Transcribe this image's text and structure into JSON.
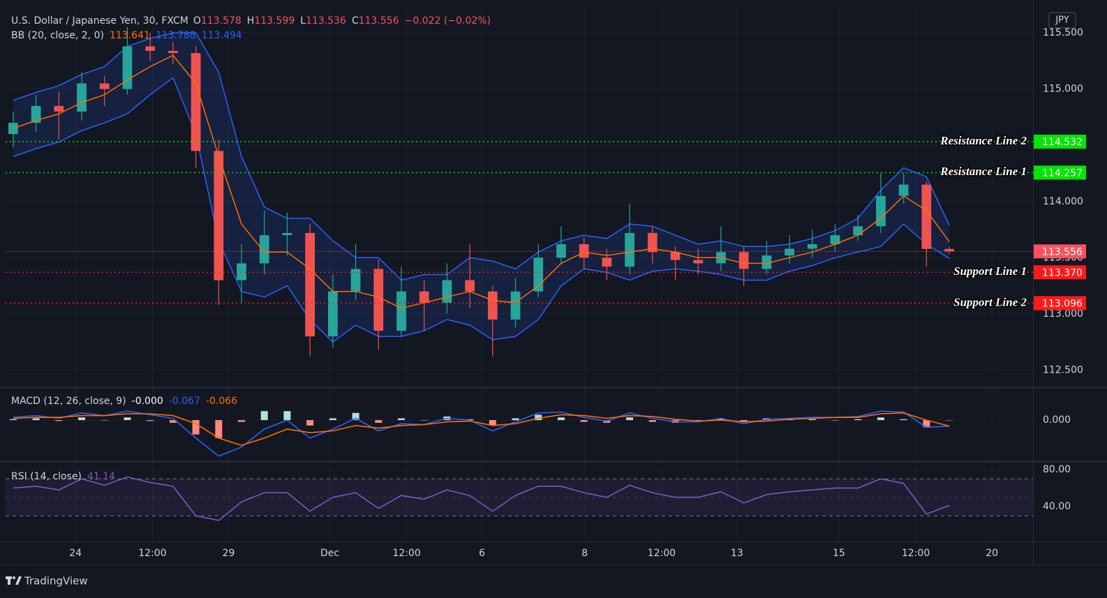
{
  "chart_data": [
    {
      "type": "candlestick",
      "title": "U.S. Dollar / Japanese Yen, 30, FXCM",
      "ohlc_keys": [
        "O",
        "H",
        "L",
        "C"
      ],
      "change": "−0.022 (−0.02%)",
      "currency": "JPY",
      "up_color": "#26a69a",
      "down_color": "#ef5350",
      "last_color": "#f7525f",
      "x": [
        0,
        3,
        6,
        9,
        12,
        15,
        18,
        21,
        24,
        27,
        30,
        33,
        36,
        39,
        42,
        45,
        48,
        51,
        54,
        57,
        60,
        63,
        66,
        69,
        72,
        75,
        78,
        81,
        84,
        87,
        90,
        93,
        96,
        99,
        102,
        105,
        108,
        111,
        114,
        117,
        120,
        123
      ],
      "open": [
        114.6,
        114.7,
        114.85,
        114.8,
        115.05,
        115.0,
        115.38,
        115.34,
        115.32,
        114.45,
        113.3,
        113.45,
        113.7,
        113.72,
        112.8,
        113.2,
        113.4,
        112.85,
        113.2,
        113.1,
        113.3,
        113.2,
        112.95,
        113.2,
        113.5,
        113.62,
        113.5,
        113.42,
        113.72,
        113.55,
        113.48,
        113.45,
        113.55,
        113.4,
        113.52,
        113.58,
        113.62,
        113.7,
        113.78,
        114.05,
        114.15,
        113.578
      ],
      "high": [
        114.8,
        114.95,
        114.98,
        115.15,
        115.12,
        115.55,
        115.5,
        115.42,
        115.38,
        114.55,
        113.62,
        113.92,
        113.9,
        113.8,
        113.35,
        113.62,
        113.48,
        113.42,
        113.3,
        113.45,
        113.62,
        113.25,
        113.32,
        113.62,
        113.78,
        113.68,
        113.58,
        113.98,
        113.78,
        113.6,
        113.58,
        113.78,
        113.6,
        113.65,
        113.7,
        113.75,
        113.8,
        113.88,
        114.25,
        114.25,
        114.18,
        113.599
      ],
      "low": [
        114.48,
        114.62,
        114.55,
        114.72,
        114.85,
        114.95,
        115.25,
        115.22,
        114.3,
        113.08,
        113.1,
        113.35,
        113.52,
        112.62,
        112.7,
        113.12,
        112.68,
        112.8,
        112.85,
        113.0,
        113.05,
        112.62,
        112.88,
        113.15,
        113.45,
        113.4,
        113.3,
        113.35,
        113.45,
        113.3,
        113.35,
        113.38,
        113.25,
        113.35,
        113.45,
        113.5,
        113.55,
        113.65,
        113.72,
        113.98,
        113.42,
        113.536
      ],
      "close": [
        114.7,
        114.85,
        114.8,
        115.05,
        115.0,
        115.38,
        115.34,
        115.32,
        114.45,
        113.3,
        113.45,
        113.7,
        113.72,
        112.8,
        113.2,
        113.4,
        112.85,
        113.2,
        113.1,
        113.3,
        113.2,
        112.95,
        113.2,
        113.5,
        113.62,
        113.5,
        113.42,
        113.72,
        113.55,
        113.48,
        113.45,
        113.55,
        113.4,
        113.52,
        113.58,
        113.62,
        113.7,
        113.78,
        114.05,
        114.15,
        113.578,
        113.556
      ],
      "bollinger": {
        "title": "BB (20, close, 2, 0)",
        "fill": "rgba(41,98,255,0.13)",
        "basis": {
          "color": "#ff6d00",
          "values": [
            114.65,
            114.72,
            114.78,
            114.88,
            114.95,
            115.08,
            115.2,
            115.3,
            115.05,
            114.4,
            113.8,
            113.55,
            113.55,
            113.4,
            113.2,
            113.2,
            113.15,
            113.05,
            113.1,
            113.15,
            113.2,
            113.12,
            113.1,
            113.25,
            113.45,
            113.55,
            113.52,
            113.55,
            113.58,
            113.55,
            113.5,
            113.5,
            113.45,
            113.45,
            113.5,
            113.55,
            113.62,
            113.7,
            113.85,
            114.05,
            113.92,
            113.641
          ]
        },
        "upper": {
          "color": "#2962ff",
          "values": [
            114.9,
            114.97,
            115.03,
            115.13,
            115.2,
            115.38,
            115.45,
            115.5,
            115.5,
            115.15,
            114.4,
            113.95,
            113.85,
            113.85,
            113.65,
            113.5,
            113.5,
            113.3,
            113.35,
            113.35,
            113.5,
            113.47,
            113.4,
            113.55,
            113.65,
            113.7,
            113.67,
            113.8,
            113.78,
            113.7,
            113.62,
            113.65,
            113.6,
            113.6,
            113.62,
            113.67,
            113.74,
            113.85,
            114.1,
            114.3,
            114.22,
            113.788
          ]
        },
        "lower": {
          "color": "#2962ff",
          "values": [
            114.4,
            114.47,
            114.53,
            114.63,
            114.7,
            114.78,
            114.95,
            115.1,
            114.6,
            113.65,
            113.2,
            113.15,
            113.25,
            112.95,
            112.75,
            112.9,
            112.8,
            112.8,
            112.85,
            112.95,
            112.9,
            112.77,
            112.8,
            112.95,
            113.25,
            113.4,
            113.37,
            113.3,
            113.38,
            113.4,
            113.38,
            113.35,
            113.3,
            113.3,
            113.38,
            113.43,
            113.5,
            113.55,
            113.6,
            113.8,
            113.62,
            113.494
          ]
        }
      },
      "levels": [
        {
          "label": "Resistance Line 2",
          "price": 114.532,
          "color": "#00e600"
        },
        {
          "label": "Resistance Line 1",
          "price": 114.257,
          "color": "#00e600"
        },
        {
          "label": "Support Line 1",
          "price": {
            "value": 113.37,
            "label": "113.370"
          },
          "color": "#ff1a1a"
        },
        {
          "label": "Support Line 2",
          "price": 113.096,
          "color": "#ff1a1a"
        }
      ],
      "xlim": [
        -1,
        134
      ],
      "xticks": [
        {
          "value": 8.2,
          "label": "24"
        },
        {
          "value": 18.3,
          "label": "12:00"
        },
        {
          "value": 28.3,
          "label": "29"
        },
        {
          "value": 41.6,
          "label": "Dec"
        },
        {
          "value": 51.7,
          "label": "12:00"
        },
        {
          "value": 61.6,
          "label": "6"
        },
        {
          "value": 75.1,
          "label": "8"
        },
        {
          "value": 85.2,
          "label": "12:00"
        },
        {
          "value": 95.1,
          "label": "13"
        },
        {
          "value": 108.5,
          "label": "15"
        },
        {
          "value": 118.6,
          "label": "12:00"
        },
        {
          "value": 128.6,
          "label": "20"
        }
      ],
      "ylim": [
        112.36,
        115.73
      ],
      "yticks": [
        {
          "value": 115.5,
          "label": "115.500"
        },
        {
          "value": 115,
          "label": "115.000"
        },
        {
          "value": 114.5,
          "label": "114.500"
        },
        {
          "value": 114,
          "label": "114.000"
        },
        {
          "value": 113.5,
          "label": "113.500"
        },
        {
          "value": 113,
          "label": "113.000"
        },
        {
          "value": 112.5,
          "label": "112.500"
        }
      ],
      "grid": true
    },
    {
      "type": "macd",
      "title": "MACD (12, 26, close, 9)",
      "last_histogram_label": "-0.000",
      "series": [
        {
          "color": "#2962ff",
          "values": [
            0.03,
            0.05,
            0.02,
            0.08,
            0.05,
            0.1,
            0.06,
            0.02,
            -0.2,
            -0.4,
            -0.3,
            -0.1,
            0.0,
            -0.2,
            -0.1,
            0.02,
            -0.12,
            -0.04,
            -0.05,
            0.02,
            0.0,
            -0.12,
            -0.02,
            0.08,
            0.09,
            0.03,
            -0.01,
            0.08,
            0.02,
            -0.02,
            -0.02,
            0.02,
            -0.04,
            0.01,
            0.02,
            0.03,
            0.03,
            0.04,
            0.1,
            0.09,
            -0.08,
            -0.067
          ]
        },
        {
          "color": "#ff6d00",
          "values": [
            0.02,
            0.03,
            0.03,
            0.05,
            0.05,
            0.07,
            0.07,
            0.05,
            -0.04,
            -0.2,
            -0.28,
            -0.2,
            -0.1,
            -0.14,
            -0.12,
            -0.06,
            -0.09,
            -0.06,
            -0.05,
            -0.02,
            -0.01,
            -0.06,
            -0.04,
            0.02,
            0.06,
            0.05,
            0.02,
            0.05,
            0.04,
            0.01,
            -0.01,
            0.0,
            -0.02,
            -0.01,
            0.01,
            0.02,
            0.03,
            0.03,
            0.07,
            0.08,
            0.0,
            -0.066
          ]
        }
      ],
      "histogram": {
        "up_color": "#b2dfdb",
        "down_color": "#ff8a80",
        "values": [
          0.01,
          0.02,
          -0.01,
          0.03,
          0,
          0.03,
          -0.01,
          -0.03,
          -0.16,
          -0.2,
          -0.02,
          0.1,
          0.1,
          -0.06,
          0.02,
          0.08,
          -0.03,
          0.02,
          0,
          0.04,
          0.01,
          -0.06,
          0.02,
          0.06,
          0.03,
          -0.02,
          -0.03,
          0.03,
          -0.02,
          -0.03,
          -0.01,
          0.02,
          -0.02,
          0.02,
          0.01,
          0.01,
          0,
          0.01,
          0.03,
          0.01,
          -0.08,
          -0.0004
        ]
      },
      "ylim": [
        -0.45,
        0.35
      ],
      "yticks": [
        {
          "value": 0,
          "label": "0.000"
        }
      ],
      "grid": true
    },
    {
      "type": "rsi",
      "title": "RSI (14, close)",
      "color": "#7e57c2",
      "values": [
        60,
        62,
        58,
        70,
        63,
        72,
        66,
        62,
        30,
        25,
        45,
        55,
        55,
        35,
        50,
        55,
        38,
        52,
        48,
        58,
        52,
        35,
        52,
        62,
        62,
        55,
        50,
        63,
        55,
        50,
        50,
        56,
        44,
        53,
        56,
        58,
        60,
        60,
        70,
        65,
        32,
        41.14
      ],
      "bands": [
        70,
        50,
        30
      ],
      "band_fill": "rgba(126,87,194,0.1)",
      "ylim": [
        3,
        87.5
      ],
      "yticks": [
        {
          "value": 80,
          "label": "80.00"
        },
        {
          "value": 40,
          "label": "40.00"
        }
      ],
      "grid": true
    }
  ],
  "footer": {
    "brand": "TradingView"
  }
}
